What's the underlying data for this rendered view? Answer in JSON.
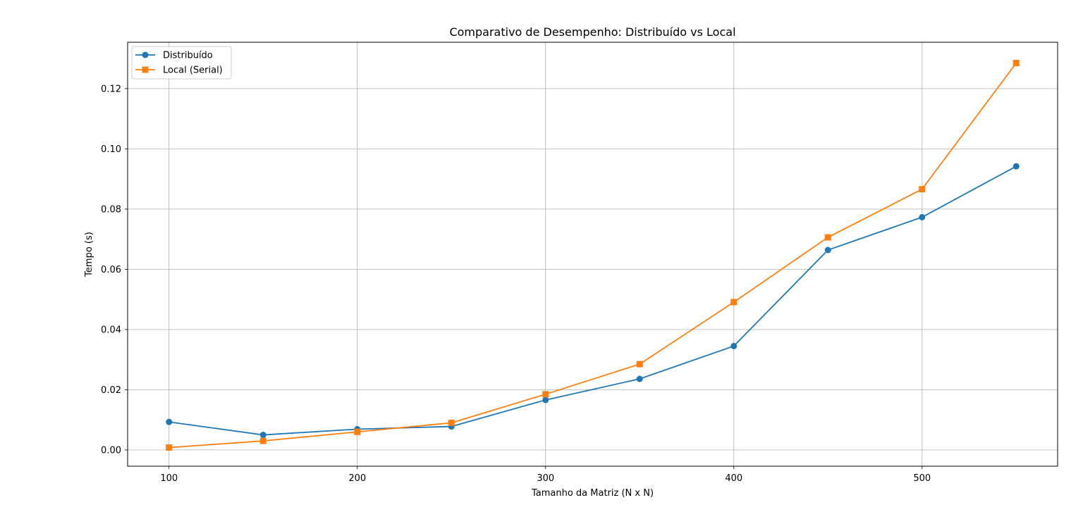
{
  "chart_data": {
    "type": "line",
    "title": "Comparativo de Desempenho: Distribuído vs Local",
    "xlabel": "Tamanho da Matriz (N x N)",
    "ylabel": "Tempo (s)",
    "x": [
      100,
      150,
      200,
      250,
      300,
      350,
      400,
      450,
      500,
      550
    ],
    "xlim": [
      78,
      572
    ],
    "ylim": [
      -0.0054,
      0.1354
    ],
    "xticks": [
      "100",
      "200",
      "300",
      "400",
      "500"
    ],
    "yticks": [
      "0.00",
      "0.02",
      "0.04",
      "0.06",
      "0.08",
      "0.10",
      "0.12"
    ],
    "grid": true,
    "legend_position": "top-left",
    "series": [
      {
        "name": "Distribuído",
        "marker": "circle",
        "color": "#1f77b4",
        "values": [
          0.0093,
          0.005,
          0.0069,
          0.0078,
          0.0166,
          0.0236,
          0.0345,
          0.0664,
          0.0773,
          0.0942
        ]
      },
      {
        "name": "Local (Serial)",
        "marker": "square",
        "color": "#ff7f0e",
        "values": [
          0.0008,
          0.003,
          0.006,
          0.009,
          0.0185,
          0.0285,
          0.0491,
          0.0706,
          0.0866,
          0.1285
        ]
      }
    ]
  }
}
